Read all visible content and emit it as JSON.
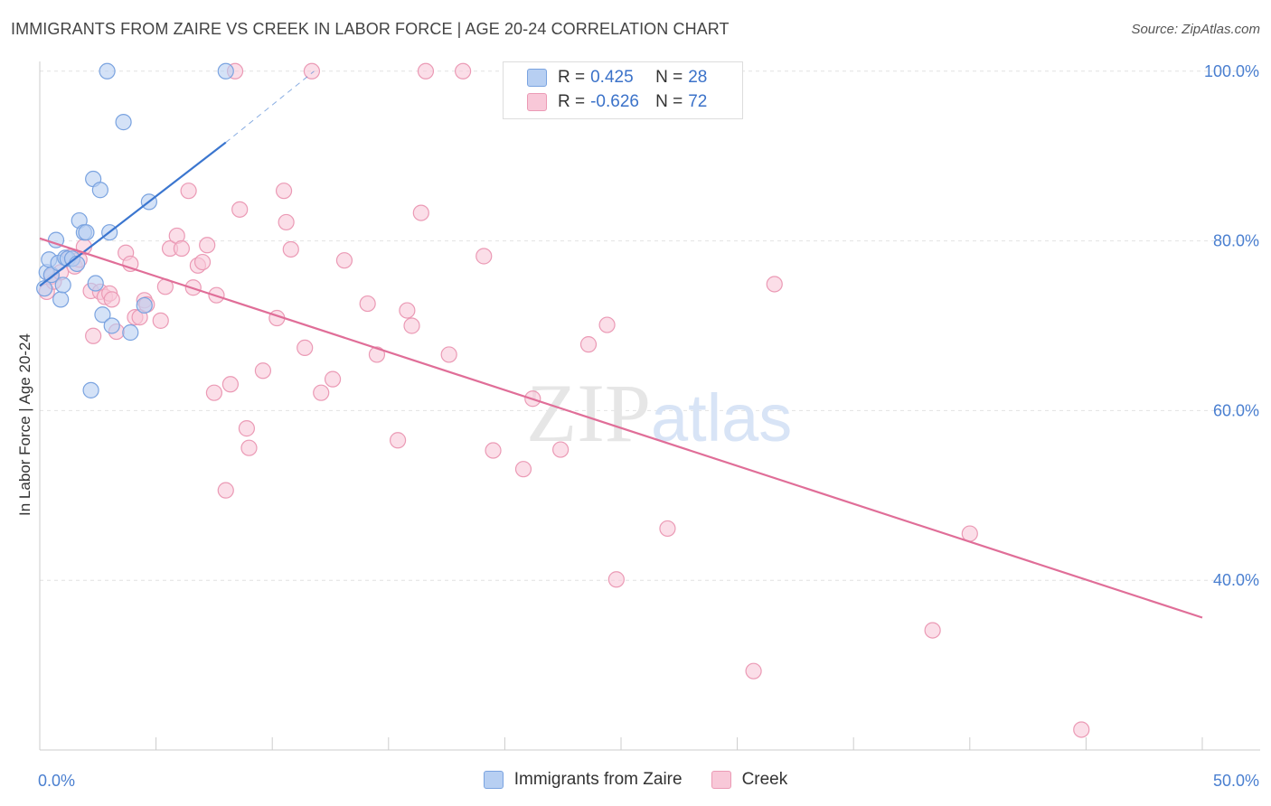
{
  "header": {
    "title": "IMMIGRANTS FROM ZAIRE VS CREEK IN LABOR FORCE | AGE 20-24 CORRELATION CHART",
    "source": "Source: ZipAtlas.com"
  },
  "watermark": {
    "zip": "ZIP",
    "atlas": "atlas"
  },
  "legend_top": [
    {
      "r_label": "R =",
      "r_value": "0.425",
      "n_label": "N =",
      "n_value": "28"
    },
    {
      "r_label": "R =",
      "r_value": "-0.626",
      "n_label": "N =",
      "n_value": "72"
    }
  ],
  "legend_bottom": [
    {
      "label": "Immigrants from Zaire"
    },
    {
      "label": "Creek"
    }
  ],
  "colors": {
    "zaire_fill": "#b7cff2",
    "zaire_stroke": "#7aa3e0",
    "zaire_line": "#3b76cf",
    "creek_fill": "#f8c8d8",
    "creek_stroke": "#eb9ab5",
    "creek_line": "#e06e98",
    "tick": "#4a7fd0",
    "grid": "#e2e2e2"
  },
  "chart_data": {
    "type": "scatter",
    "title": "IMMIGRANTS FROM ZAIRE VS CREEK IN LABOR FORCE | AGE 20-24 CORRELATION CHART",
    "xlabel": "",
    "ylabel": "In Labor Force | Age 20-24",
    "xlim": [
      0,
      50
    ],
    "ylim": [
      20,
      102
    ],
    "x_tick_labels": [
      "0.0%",
      "50.0%"
    ],
    "y_ticks": [
      40,
      60,
      80,
      100
    ],
    "y_tick_labels": [
      "40.0%",
      "60.0%",
      "80.0%",
      "100.0%"
    ],
    "grid": true,
    "series": [
      {
        "name": "Immigrants from Zaire",
        "points": [
          [
            0.2,
            74.4
          ],
          [
            0.3,
            76.3
          ],
          [
            0.4,
            77.8
          ],
          [
            0.5,
            76.0
          ],
          [
            0.7,
            80.1
          ],
          [
            0.8,
            77.4
          ],
          [
            0.9,
            73.1
          ],
          [
            1.0,
            74.8
          ],
          [
            1.1,
            78.0
          ],
          [
            1.2,
            77.9
          ],
          [
            1.4,
            77.9
          ],
          [
            1.6,
            77.3
          ],
          [
            1.7,
            82.4
          ],
          [
            1.9,
            81.0
          ],
          [
            2.0,
            81.0
          ],
          [
            2.2,
            62.4
          ],
          [
            2.3,
            87.3
          ],
          [
            2.4,
            75.0
          ],
          [
            2.6,
            86.0
          ],
          [
            2.7,
            71.3
          ],
          [
            2.9,
            100.0
          ],
          [
            3.0,
            81.0
          ],
          [
            3.1,
            70.0
          ],
          [
            3.6,
            94.0
          ],
          [
            3.9,
            69.2
          ],
          [
            4.5,
            72.4
          ],
          [
            4.7,
            84.6
          ],
          [
            8.0,
            100.0
          ]
        ],
        "trend": {
          "x": [
            0.0,
            8.0
          ],
          "y": [
            74.7,
            91.6
          ],
          "dashed_to": [
            11.8,
            100.0
          ]
        }
      },
      {
        "name": "Creek",
        "points": [
          [
            0.3,
            74.0
          ],
          [
            0.5,
            75.8
          ],
          [
            0.6,
            75.2
          ],
          [
            0.9,
            76.3
          ],
          [
            1.3,
            78.1
          ],
          [
            1.5,
            77.0
          ],
          [
            1.7,
            77.8
          ],
          [
            1.9,
            79.3
          ],
          [
            2.2,
            74.1
          ],
          [
            2.3,
            68.8
          ],
          [
            2.6,
            74.0
          ],
          [
            2.8,
            73.4
          ],
          [
            3.0,
            73.8
          ],
          [
            3.1,
            73.1
          ],
          [
            3.3,
            69.3
          ],
          [
            3.7,
            78.6
          ],
          [
            3.9,
            77.3
          ],
          [
            4.1,
            71.0
          ],
          [
            4.3,
            71.0
          ],
          [
            4.5,
            73.0
          ],
          [
            4.6,
            72.5
          ],
          [
            5.2,
            70.6
          ],
          [
            5.4,
            74.6
          ],
          [
            5.6,
            79.1
          ],
          [
            5.9,
            80.6
          ],
          [
            6.1,
            79.1
          ],
          [
            6.4,
            85.9
          ],
          [
            6.6,
            74.5
          ],
          [
            6.8,
            77.1
          ],
          [
            7.0,
            77.5
          ],
          [
            7.2,
            79.5
          ],
          [
            7.5,
            62.1
          ],
          [
            7.6,
            73.6
          ],
          [
            8.0,
            50.6
          ],
          [
            8.2,
            63.1
          ],
          [
            8.6,
            83.7
          ],
          [
            8.9,
            57.9
          ],
          [
            9.0,
            55.6
          ],
          [
            9.6,
            64.7
          ],
          [
            10.2,
            70.9
          ],
          [
            10.5,
            85.9
          ],
          [
            10.6,
            82.2
          ],
          [
            10.8,
            79.0
          ],
          [
            11.4,
            67.4
          ],
          [
            12.1,
            62.1
          ],
          [
            12.6,
            63.7
          ],
          [
            13.1,
            77.7
          ],
          [
            14.1,
            72.6
          ],
          [
            14.5,
            66.6
          ],
          [
            15.4,
            56.5
          ],
          [
            15.8,
            71.8
          ],
          [
            16.0,
            70.0
          ],
          [
            16.4,
            83.3
          ],
          [
            17.6,
            66.6
          ],
          [
            18.2,
            100.0
          ],
          [
            19.1,
            78.2
          ],
          [
            19.5,
            55.3
          ],
          [
            20.8,
            53.1
          ],
          [
            21.2,
            61.4
          ],
          [
            22.4,
            55.4
          ],
          [
            23.6,
            67.8
          ],
          [
            24.4,
            70.1
          ],
          [
            24.8,
            40.1
          ],
          [
            27.0,
            46.1
          ],
          [
            30.7,
            29.3
          ],
          [
            31.6,
            74.9
          ],
          [
            38.4,
            34.1
          ],
          [
            40.0,
            45.5
          ],
          [
            44.8,
            22.4
          ],
          [
            16.6,
            100.0
          ],
          [
            11.7,
            100.0
          ],
          [
            8.4,
            100.0
          ]
        ],
        "trend": {
          "x": [
            0.0,
            50.0
          ],
          "y": [
            80.3,
            35.6
          ]
        }
      }
    ]
  }
}
